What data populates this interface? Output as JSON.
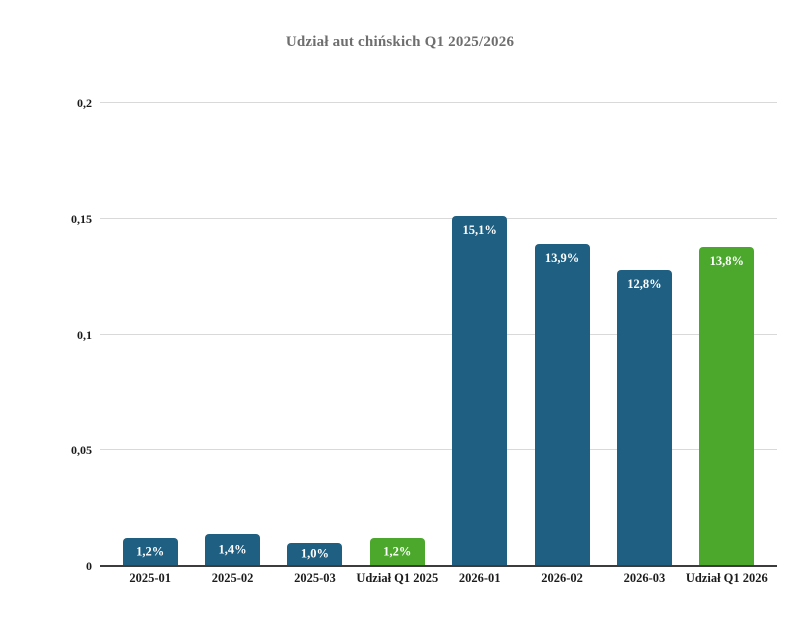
{
  "chart_data": {
    "type": "bar",
    "title": "Udział aut chińskich Q1 2025/2026",
    "categories": [
      "2025-01",
      "2025-02",
      "2025-03",
      "Udział Q1 2025",
      "2026-01",
      "2026-02",
      "2026-03",
      "Udział Q1 2026"
    ],
    "values": [
      0.012,
      0.014,
      0.01,
      0.012,
      0.151,
      0.139,
      0.128,
      0.138
    ],
    "bar_labels": [
      "1,2%",
      "1,4%",
      "1,0%",
      "1,2%",
      "15,1%",
      "13,9%",
      "12,8%",
      "13,8%"
    ],
    "bar_colors": [
      "#1e5f82",
      "#1e5f82",
      "#1e5f82",
      "#4ca82d",
      "#1e5f82",
      "#1e5f82",
      "#1e5f82",
      "#4ca82d"
    ],
    "y_ticks": [
      {
        "label": "0",
        "value": 0
      },
      {
        "label": "0,05",
        "value": 0.05
      },
      {
        "label": "0,1",
        "value": 0.1
      },
      {
        "label": "0,15",
        "value": 0.15
      },
      {
        "label": "0,2",
        "value": 0.2
      }
    ],
    "ylim": [
      0,
      0.2
    ],
    "grid": true,
    "legend_position": "none",
    "xlabel": "",
    "ylabel": "",
    "colors": {
      "series": "#1e5f82",
      "highlight": "#4ca82d",
      "title_text": "#6e6e6e",
      "axis_text": "#1a1a1a",
      "gridline": "#d9d9d9",
      "baseline": "#3c3c3c",
      "bar_label_text": "#ffffff",
      "background": "#ffffff"
    }
  }
}
